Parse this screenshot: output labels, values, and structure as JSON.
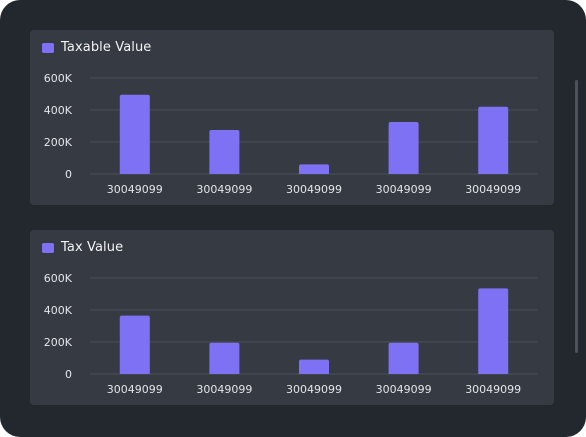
{
  "colors": {
    "background": "#23272e",
    "panel": "#363b43",
    "bar": "#7f71f4",
    "gridline": "#4a4f58",
    "text": "#e2e5ea"
  },
  "chart_data": [
    {
      "type": "bar",
      "legend": [
        "Taxable Value"
      ],
      "categories": [
        "30049099",
        "30049099",
        "30049099",
        "30049099",
        "30049099"
      ],
      "series": [
        {
          "name": "Taxable Value",
          "values": [
            495000,
            275000,
            60000,
            325000,
            420000
          ]
        }
      ],
      "ylim": [
        0,
        600000
      ],
      "yticks": [
        "0",
        "200K",
        "400K",
        "600K"
      ],
      "grid": true,
      "legend_position": "top-left"
    },
    {
      "type": "bar",
      "legend": [
        "Tax Value"
      ],
      "categories": [
        "30049099",
        "30049099",
        "30049099",
        "30049099",
        "30049099"
      ],
      "series": [
        {
          "name": "Tax Value",
          "values": [
            365000,
            195000,
            90000,
            195000,
            535000
          ]
        }
      ],
      "ylim": [
        0,
        600000
      ],
      "yticks": [
        "0",
        "200K",
        "400K",
        "600K"
      ],
      "grid": true,
      "legend_position": "top-left"
    }
  ]
}
